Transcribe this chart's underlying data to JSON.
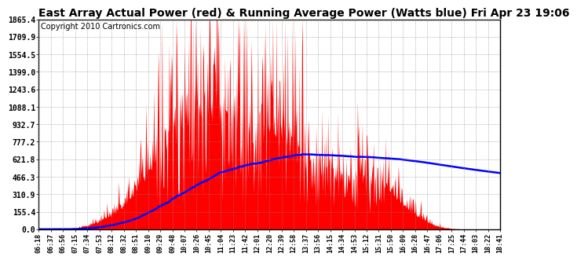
{
  "title": "East Array Actual Power (red) & Running Average Power (Watts blue) Fri Apr 23 19:06",
  "copyright": "Copyright 2010 Cartronics.com",
  "ymin": 0.0,
  "ymax": 1865.4,
  "ytick_labels": [
    "0.0",
    "155.4",
    "310.9",
    "466.3",
    "621.8",
    "777.2",
    "932.7",
    "1088.1",
    "1243.6",
    "1399.0",
    "1554.5",
    "1709.9",
    "1865.4"
  ],
  "xtick_labels": [
    "06:18",
    "06:37",
    "06:56",
    "07:15",
    "07:34",
    "07:53",
    "08:12",
    "08:32",
    "08:51",
    "09:10",
    "09:29",
    "09:48",
    "10:07",
    "10:26",
    "10:45",
    "11:04",
    "11:23",
    "11:42",
    "12:01",
    "12:20",
    "12:39",
    "12:58",
    "13:37",
    "13:56",
    "14:15",
    "14:34",
    "14:53",
    "15:12",
    "15:31",
    "15:50",
    "16:09",
    "16:28",
    "16:47",
    "17:06",
    "17:25",
    "17:44",
    "18:03",
    "18:22",
    "18:41"
  ],
  "actual_power_color": "#FF0000",
  "avg_power_color": "#0000FF",
  "background_color": "#FFFFFF",
  "grid_color": "#888888",
  "title_fontsize": 10,
  "copyright_fontsize": 7
}
